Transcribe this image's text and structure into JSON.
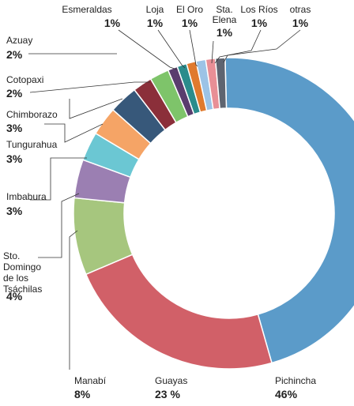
{
  "chart_data": {
    "type": "pie",
    "variant": "donut",
    "slices": [
      {
        "name": "Pichincha",
        "value": 46,
        "pct_label": "46%",
        "color": "#5b9bc9"
      },
      {
        "name": "Guayas",
        "value": 23,
        "pct_label": "23 %",
        "color": "#d16068"
      },
      {
        "name": "Manabí",
        "value": 8,
        "pct_label": "8%",
        "color": "#a6c67e"
      },
      {
        "name": "Sto. Domingo de los Tsáchilas",
        "value": 4,
        "pct_label": "4%",
        "color": "#9b7fb2"
      },
      {
        "name": "Imbabura",
        "value": 3,
        "pct_label": "3%",
        "color": "#6bc7d3"
      },
      {
        "name": "Tungurahua",
        "value": 3,
        "pct_label": "3%",
        "color": "#f5a466"
      },
      {
        "name": "Chimborazo",
        "value": 3,
        "pct_label": "3%",
        "color": "#37587a"
      },
      {
        "name": "Cotopaxi",
        "value": 2,
        "pct_label": "2%",
        "color": "#8b2f3a"
      },
      {
        "name": "Azuay",
        "value": 2,
        "pct_label": "2%",
        "color": "#7ec46a"
      },
      {
        "name": "Esmeraldas",
        "value": 1,
        "pct_label": "1%",
        "color": "#5a3d6e"
      },
      {
        "name": "Loja",
        "value": 1,
        "pct_label": "1%",
        "color": "#2b8c8c"
      },
      {
        "name": "El Oro",
        "value": 1,
        "pct_label": "1%",
        "color": "#e07a2e"
      },
      {
        "name": "Sta. Elena",
        "value": 1,
        "pct_label": "1%",
        "color": "#9cc3e6"
      },
      {
        "name": "Los Ríos",
        "value": 1,
        "pct_label": "1%",
        "color": "#e88f96"
      },
      {
        "name": "otras",
        "value": 1,
        "pct_label": "1%",
        "color": "#5e6470"
      }
    ]
  }
}
